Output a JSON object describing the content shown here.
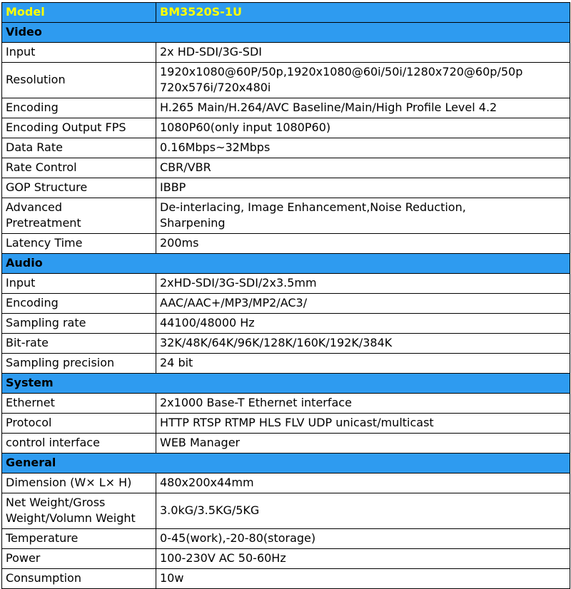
{
  "colors": {
    "header_bg": "#2e9bf0",
    "model_text": "#ffff00",
    "body_text": "#000000",
    "border": "#000000",
    "row_bg": "#ffffff"
  },
  "table": {
    "model_row": {
      "label": "Model",
      "value": "BM3520S-1U"
    },
    "sections": [
      {
        "title": "Video",
        "rows": [
          {
            "label": "Input",
            "value": "2x HD-SDI/3G-SDI"
          },
          {
            "label": "Resolution",
            "value": "1920x1080@60P/50p,1920x1080@60i/50i/1280x720@60p/50p\n720x576i/720x480i"
          },
          {
            "label": "Encoding",
            "value": "H.265 Main/H.264/AVC Baseline/Main/High Profile Level 4.2"
          },
          {
            "label": "Encoding Output FPS",
            "value": "1080P60(only input 1080P60)"
          },
          {
            "label": "Data Rate",
            "value": "0.16Mbps~32Mbps"
          },
          {
            "label": "Rate Control",
            "value": "CBR/VBR"
          },
          {
            "label": "GOP Structure",
            "value": "IBBP"
          },
          {
            "label": "Advanced\nPretreatment",
            "value": "De-interlacing, Image Enhancement,Noise Reduction,\nSharpening"
          },
          {
            "label": "Latency Time",
            "value": "200ms"
          }
        ]
      },
      {
        "title": "Audio",
        "rows": [
          {
            "label": "Input",
            "value": "2xHD-SDI/3G-SDI/2x3.5mm"
          },
          {
            "label": "Encoding",
            "value": "AAC/AAC+/MP3/MP2/AC3/"
          },
          {
            "label": "Sampling rate",
            "value": "44100/48000 Hz"
          },
          {
            "label": "Bit-rate",
            "value": "32K/48K/64K/96K/128K/160K/192K/384K"
          },
          {
            "label": "Sampling precision",
            "value": "24 bit"
          }
        ]
      },
      {
        "title": "System",
        "rows": [
          {
            "label": "Ethernet",
            "value": "2x1000 Base-T Ethernet interface"
          },
          {
            "label": "Protocol",
            "value": "HTTP RTSP RTMP HLS FLV UDP unicast/multicast"
          },
          {
            "label": "control interface",
            "value": "WEB Manager"
          }
        ]
      },
      {
        "title": "General",
        "rows": [
          {
            "label": "Dimension (W× L× H)",
            "value": "480x200x44mm"
          },
          {
            "label": "Net Weight/Gross\nWeight/Volumn Weight",
            "value": "3.0kG/3.5KG/5KG"
          },
          {
            "label": "Temperature",
            "value": "0-45(work),-20-80(storage)"
          },
          {
            "label": "Power",
            "value": "100-230V AC 50-60Hz"
          },
          {
            "label": "Consumption",
            "value": "10w"
          }
        ]
      }
    ]
  }
}
